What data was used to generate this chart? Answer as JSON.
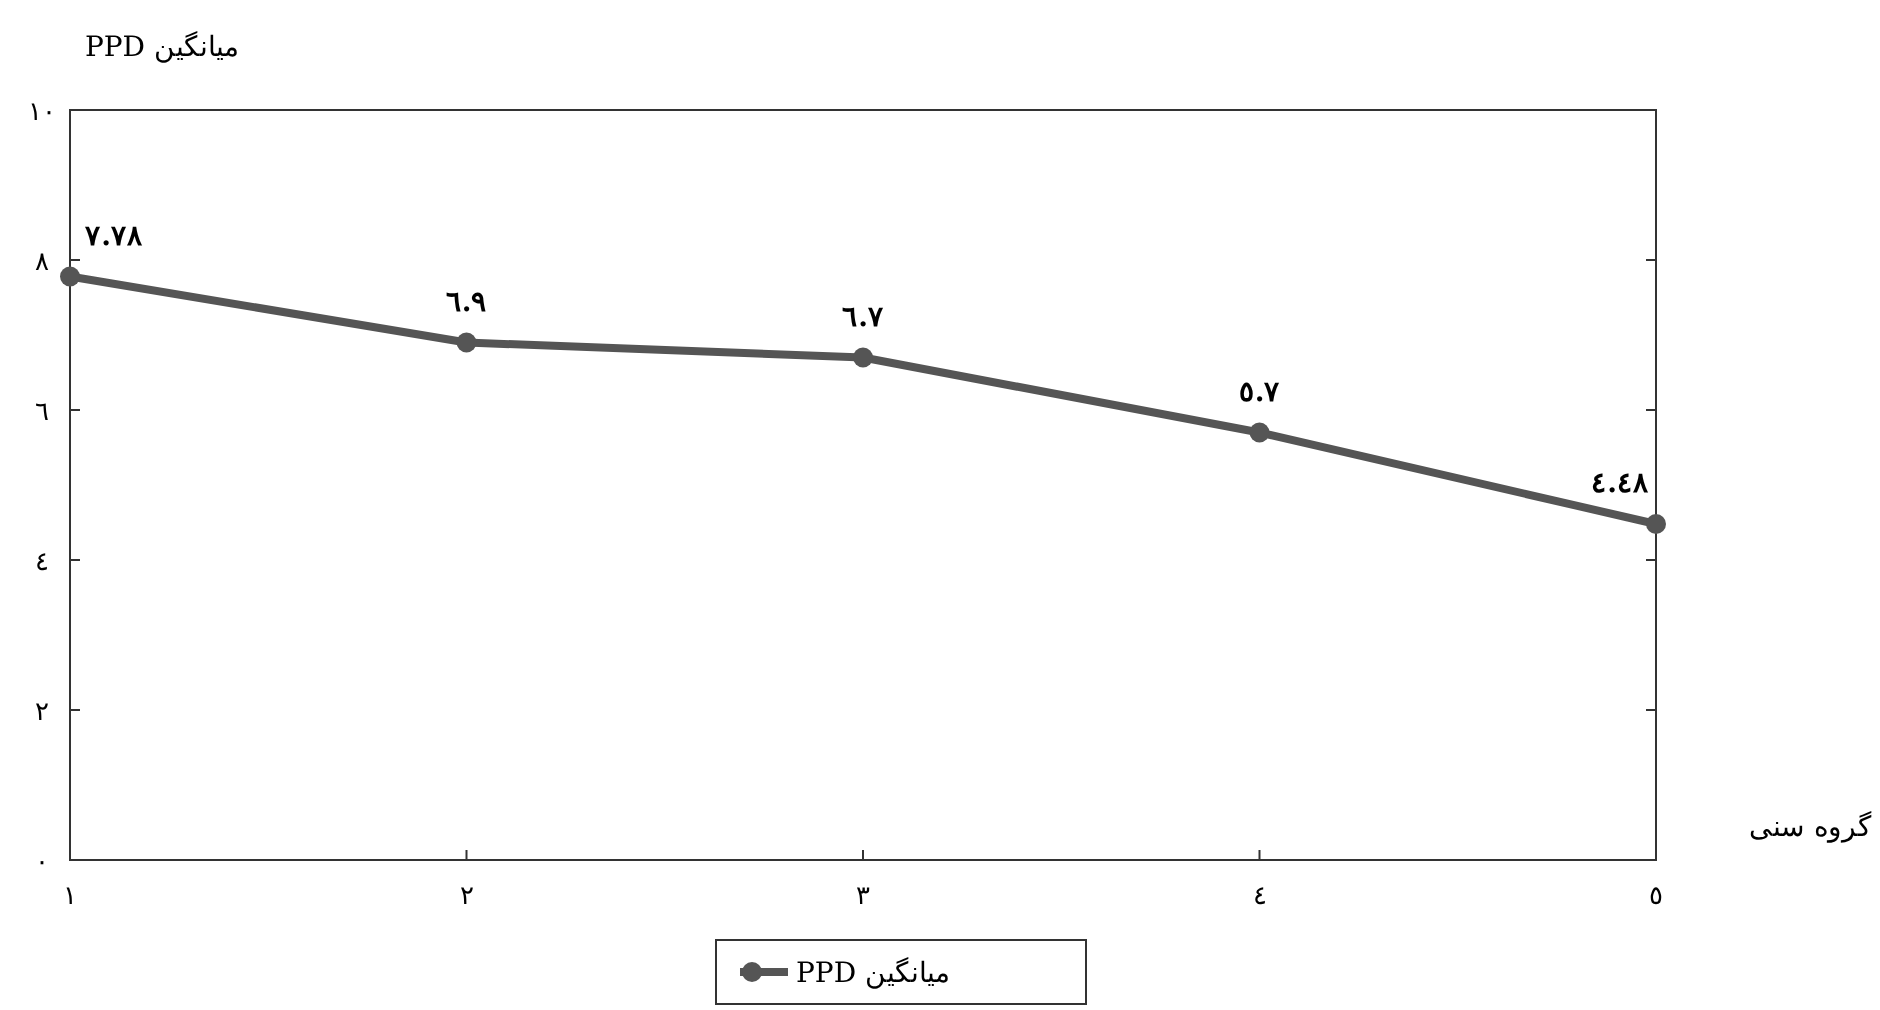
{
  "chart_data": {
    "type": "line",
    "ylabel": "میانگین PPD",
    "xlabel": "گروه سنی",
    "categories": [
      "١",
      "٢",
      "٣",
      "٤",
      "٥"
    ],
    "series": [
      {
        "name": "میانگین PPD",
        "color": "#555555",
        "values": [
          7.78,
          6.9,
          6.7,
          5.7,
          4.48
        ],
        "value_labels": [
          "٧.٧٨",
          "٦.٩",
          "٦.٧",
          "٥.٧",
          "٤.٤٨"
        ]
      }
    ],
    "ylim": [
      0,
      10
    ],
    "yticks": [
      {
        "value": 0,
        "label": "٠"
      },
      {
        "value": 2,
        "label": "٢"
      },
      {
        "value": 4,
        "label": "٤"
      },
      {
        "value": 6,
        "label": "٦"
      },
      {
        "value": 8,
        "label": "٨"
      },
      {
        "value": 10,
        "label": "١٠"
      }
    ],
    "marker": "circle",
    "line_style": "solid",
    "grid": false,
    "legend": "bottom"
  }
}
